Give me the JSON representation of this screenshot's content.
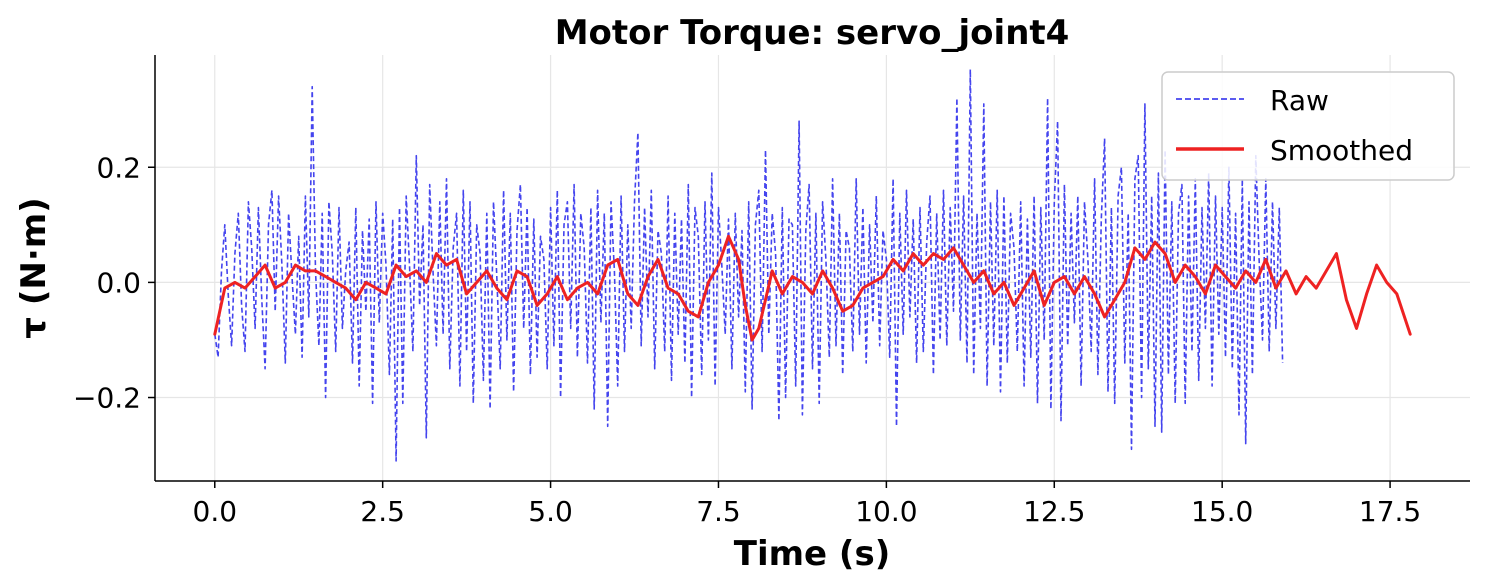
{
  "chart_data": {
    "type": "line",
    "title": "Motor Torque: servo_joint4",
    "xlabel": "Time (s)",
    "ylabel": "τ (N·m)",
    "xlim": [
      -0.89,
      18.69
    ],
    "ylim": [
      -0.345,
      0.395
    ],
    "xticks": [
      0.0,
      2.5,
      5.0,
      7.5,
      10.0,
      12.5,
      15.0,
      17.5
    ],
    "xtick_labels": [
      "0.0",
      "2.5",
      "5.0",
      "7.5",
      "10.0",
      "12.5",
      "15.0",
      "17.5"
    ],
    "yticks": [
      -0.2,
      0.0,
      0.2
    ],
    "ytick_labels": [
      "−0.2",
      "0.0",
      "0.2"
    ],
    "grid": true,
    "legend_position": "top-right",
    "series": [
      {
        "name": "Raw",
        "color": "#4444ee",
        "style": "dashed",
        "x_start": 0.0,
        "x_step": 0.05,
        "values": [
          -0.09,
          -0.13,
          0.02,
          0.1,
          -0.02,
          -0.11,
          0.05,
          0.12,
          -0.04,
          -0.12,
          0.14,
          0.06,
          -0.08,
          0.13,
          -0.03,
          -0.15,
          0.1,
          0.16,
          -0.05,
          0.15,
          0.03,
          -0.14,
          0.12,
          0.01,
          -0.09,
          0.08,
          -0.13,
          0.15,
          -0.06,
          0.34,
          0.02,
          -0.11,
          0.12,
          -0.2,
          0.14,
          0.05,
          -0.12,
          0.13,
          -0.08,
          0.02,
          0.07,
          -0.14,
          0.13,
          -0.18,
          0.09,
          -0.05,
          0.11,
          -0.21,
          0.14,
          -0.07,
          0.12,
          0.03,
          -0.16,
          0.11,
          -0.31,
          0.13,
          -0.21,
          0.15,
          0.03,
          -0.12,
          0.22,
          -0.04,
          0.1,
          -0.27,
          0.17,
          0.02,
          -0.11,
          0.14,
          -0.09,
          0.18,
          -0.15,
          0.06,
          0.12,
          -0.18,
          0.16,
          -0.12,
          0.14,
          -0.21,
          0.1,
          0.05,
          -0.17,
          0.12,
          -0.22,
          0.14,
          0.01,
          -0.15,
          0.16,
          -0.1,
          0.12,
          -0.19,
          0.09,
          0.17,
          -0.08,
          0.13,
          -0.16,
          0.11,
          -0.13,
          0.08,
          0.04,
          -0.15,
          0.13,
          -0.11,
          0.16,
          -0.2,
          0.1,
          0.14,
          -0.08,
          0.17,
          -0.13,
          0.12,
          0.06,
          -0.14,
          0.13,
          -0.22,
          0.16,
          -0.07,
          0.12,
          -0.25,
          0.14,
          0.02,
          -0.18,
          0.15,
          -0.12,
          0.1,
          -0.08,
          0.14,
          0.26,
          -0.11,
          0.13,
          -0.06,
          0.16,
          -0.15,
          0.09,
          0.05,
          -0.12,
          0.15,
          -0.17,
          0.12,
          -0.09,
          0.11,
          -0.14,
          0.17,
          -0.2,
          0.13,
          0.08,
          -0.16,
          0.14,
          -0.1,
          0.19,
          -0.18,
          0.13,
          0.03,
          -0.09,
          0.11,
          -0.15,
          0.12,
          -0.06,
          0.09,
          -0.19,
          0.14,
          -0.22,
          0.1,
          0.16,
          -0.12,
          0.23,
          -0.09,
          0.12,
          0.05,
          -0.24,
          0.13,
          -0.2,
          0.11,
          0.1,
          -0.18,
          0.28,
          -0.23,
          0.09,
          0.17,
          -0.15,
          0.12,
          -0.21,
          0.14,
          0.04,
          -0.13,
          0.18,
          -0.11,
          0.12,
          -0.16,
          0.09,
          0.06,
          -0.12,
          0.18,
          -0.09,
          0.13,
          -0.14,
          0.1,
          -0.07,
          0.15,
          -0.11,
          0.09,
          0.04,
          -0.13,
          0.18,
          -0.25,
          0.12,
          -0.09,
          0.16,
          -0.06,
          0.11,
          -0.14,
          0.13,
          -0.12,
          0.07,
          0.15,
          -0.16,
          0.12,
          -0.1,
          0.16,
          -0.11,
          0.13,
          -0.05,
          0.32,
          -0.1,
          0.15,
          -0.14,
          0.37,
          -0.16,
          0.12,
          -0.08,
          0.31,
          -0.18,
          0.14,
          -0.11,
          0.16,
          -0.19,
          0.15,
          -0.14,
          0.12,
          0.06,
          -0.12,
          0.14,
          -0.18,
          0.11,
          -0.13,
          0.15,
          -0.21,
          0.13,
          -0.1,
          0.32,
          -0.22,
          0.14,
          0.28,
          -0.24,
          0.17,
          -0.11,
          0.12,
          -0.07,
          0.15,
          -0.18,
          0.14,
          0.04,
          -0.12,
          0.18,
          -0.16,
          0.11,
          0.25,
          -0.19,
          0.13,
          -0.21,
          0.15,
          0.2,
          -0.14,
          0.12,
          -0.29,
          0.18,
          0.22,
          -0.2,
          0.31,
          -0.15,
          0.15,
          -0.25,
          0.19,
          -0.26,
          0.23,
          -0.16,
          0.14,
          -0.21,
          0.12,
          0.17,
          -0.21,
          0.15,
          -0.12,
          0.18,
          -0.17,
          0.13,
          -0.08,
          0.19,
          -0.18,
          0.15,
          -0.09,
          0.13,
          -0.13,
          0.2,
          -0.15,
          0.12,
          -0.23,
          0.18,
          -0.28,
          0.14,
          -0.16,
          0.22,
          0.04,
          -0.1,
          0.18,
          -0.12,
          0.14,
          -0.08,
          0.13,
          -0.14
        ]
      },
      {
        "name": "Smoothed",
        "color": "#ee2222",
        "style": "solid",
        "x": [
          0.0,
          0.15,
          0.3,
          0.45,
          0.6,
          0.75,
          0.9,
          1.05,
          1.2,
          1.35,
          1.5,
          1.65,
          1.8,
          1.95,
          2.1,
          2.25,
          2.4,
          2.55,
          2.7,
          2.85,
          3.0,
          3.15,
          3.3,
          3.45,
          3.6,
          3.75,
          3.9,
          4.05,
          4.2,
          4.35,
          4.5,
          4.65,
          4.8,
          4.95,
          5.1,
          5.25,
          5.4,
          5.55,
          5.7,
          5.85,
          6.0,
          6.15,
          6.3,
          6.45,
          6.6,
          6.75,
          6.9,
          7.05,
          7.2,
          7.35,
          7.5,
          7.65,
          7.8,
          7.9,
          8.0,
          8.1,
          8.2,
          8.3,
          8.45,
          8.6,
          8.75,
          8.9,
          9.05,
          9.2,
          9.35,
          9.5,
          9.65,
          9.8,
          9.95,
          10.1,
          10.25,
          10.4,
          10.55,
          10.7,
          10.85,
          11.0,
          11.15,
          11.3,
          11.45,
          11.6,
          11.75,
          11.9,
          12.05,
          12.2,
          12.35,
          12.5,
          12.65,
          12.8,
          12.95,
          13.1,
          13.25,
          13.4,
          13.55,
          13.7,
          13.85,
          14.0,
          14.15,
          14.3,
          14.45,
          14.6,
          14.75,
          14.9,
          15.05,
          15.2,
          15.35,
          15.5,
          15.65,
          15.8,
          15.95,
          16.1,
          16.25,
          16.4,
          16.55,
          16.7,
          16.85,
          17.0,
          17.15,
          17.3,
          17.45,
          17.6,
          17.8
        ],
        "values": [
          -0.09,
          -0.01,
          0.0,
          -0.01,
          0.01,
          0.03,
          -0.01,
          0.0,
          0.03,
          0.02,
          0.02,
          0.01,
          0.0,
          -0.01,
          -0.03,
          0.0,
          -0.01,
          -0.02,
          0.03,
          0.01,
          0.02,
          0.0,
          0.05,
          0.03,
          0.04,
          -0.02,
          0.0,
          0.02,
          -0.01,
          -0.03,
          0.02,
          0.01,
          -0.04,
          -0.02,
          0.01,
          -0.03,
          -0.01,
          0.0,
          -0.02,
          0.03,
          0.04,
          -0.02,
          -0.04,
          0.01,
          0.04,
          -0.01,
          -0.02,
          -0.05,
          -0.06,
          0.0,
          0.03,
          0.08,
          0.04,
          -0.04,
          -0.1,
          -0.08,
          -0.03,
          0.02,
          -0.02,
          0.01,
          0.0,
          -0.02,
          0.02,
          -0.01,
          -0.05,
          -0.04,
          -0.01,
          0.0,
          0.01,
          0.04,
          0.02,
          0.05,
          0.03,
          0.05,
          0.04,
          0.06,
          0.03,
          0.0,
          0.02,
          -0.02,
          0.0,
          -0.04,
          -0.01,
          0.02,
          -0.04,
          0.0,
          0.01,
          -0.02,
          0.01,
          -0.02,
          -0.06,
          -0.03,
          0.0,
          0.06,
          0.04,
          0.07,
          0.05,
          0.0,
          0.03,
          0.01,
          -0.02,
          0.03,
          0.01,
          -0.01,
          0.02,
          0.0,
          0.04,
          -0.01,
          0.02,
          -0.02,
          0.01,
          -0.01,
          0.02,
          0.05,
          -0.03,
          -0.08,
          -0.02,
          0.03,
          0.0,
          -0.02,
          -0.09
        ]
      }
    ]
  },
  "colors": {
    "raw": "#4444ee",
    "smoothed": "#ee2222",
    "grid": "#e6e6e6",
    "axis": "#000000"
  }
}
